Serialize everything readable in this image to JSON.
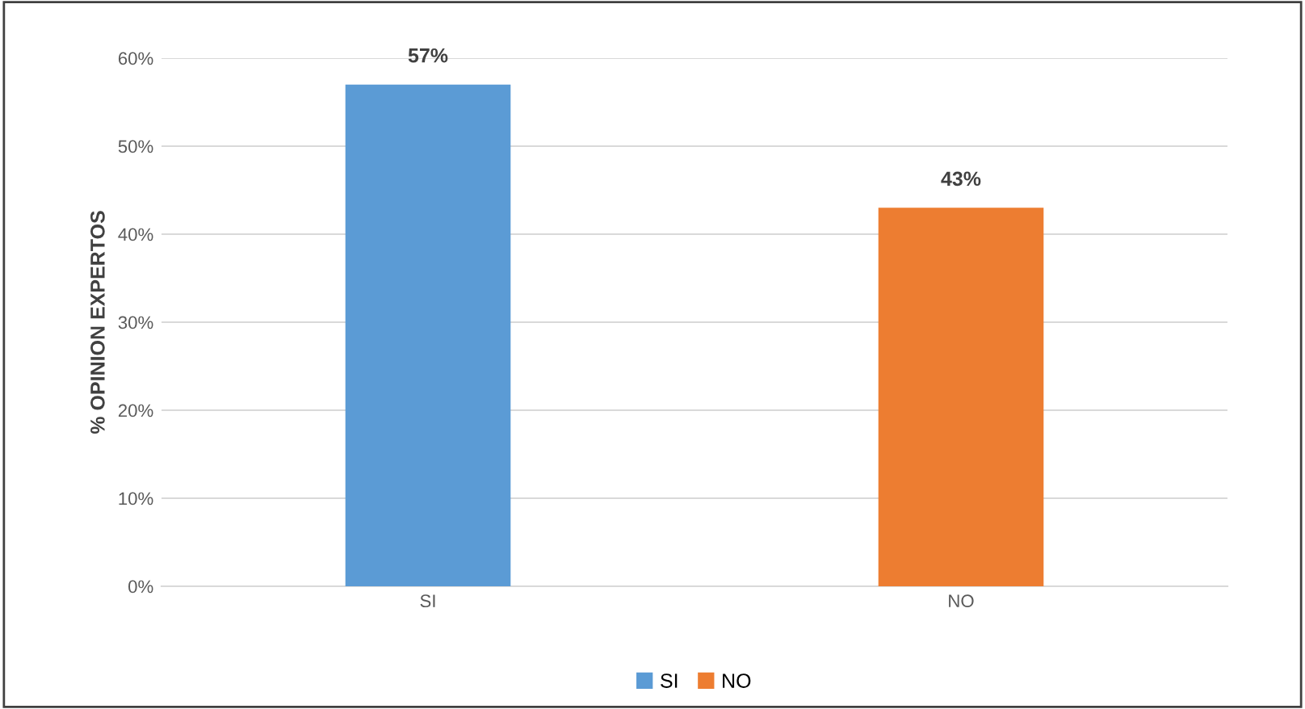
{
  "chart_data": {
    "type": "bar",
    "ylabel": "% OPINION EXPERTOS",
    "categories": [
      "SI",
      "NO"
    ],
    "series": [
      {
        "name": "SI",
        "color": "#5b9bd5",
        "values": [
          57,
          null
        ],
        "value_labels": [
          "57%",
          null
        ]
      },
      {
        "name": "NO",
        "color": "#ed7d31",
        "values": [
          null,
          43
        ],
        "value_labels": [
          null,
          "43%"
        ]
      }
    ],
    "ylim": [
      0,
      60
    ],
    "yticks": [
      {
        "value": 0,
        "label": "0%"
      },
      {
        "value": 10,
        "label": "10%"
      },
      {
        "value": 20,
        "label": "20%"
      },
      {
        "value": 30,
        "label": "30%"
      },
      {
        "value": 40,
        "label": "40%"
      },
      {
        "value": 50,
        "label": "50%"
      },
      {
        "value": 60,
        "label": "60%"
      }
    ],
    "grid": "y",
    "legend": "bottom"
  }
}
